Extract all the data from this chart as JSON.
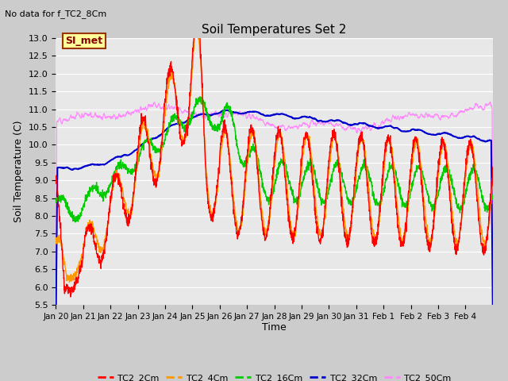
{
  "title": "Soil Temperatures Set 2",
  "subtitle": "No data for f_TC2_8Cm",
  "xlabel": "Time",
  "ylabel": "Soil Temperature (C)",
  "ylim": [
    5.5,
    13.0
  ],
  "yticks": [
    5.5,
    6.0,
    6.5,
    7.0,
    7.5,
    8.0,
    8.5,
    9.0,
    9.5,
    10.0,
    10.5,
    11.0,
    11.5,
    12.0,
    12.5,
    13.0
  ],
  "xtick_labels": [
    "Jan 20",
    "Jan 21",
    "Jan 22",
    "Jan 23",
    "Jan 24",
    "Jan 25",
    "Jan 26",
    "Jan 27",
    "Jan 28",
    "Jan 29",
    "Jan 30",
    "Jan 31",
    "Feb 1",
    "Feb 2",
    "Feb 3",
    "Feb 4"
  ],
  "line_colors": {
    "TC2_2Cm": "#ff0000",
    "TC2_4Cm": "#ff9900",
    "TC2_16Cm": "#00cc00",
    "TC2_32Cm": "#0000cc",
    "TC2_50Cm": "#ff88ff"
  },
  "legend_label": "SI_met",
  "legend_bg": "#ffff99",
  "legend_border": "#993300",
  "fig_bg": "#dddddd",
  "plot_bg": "#e8e8e8",
  "grid_color": "#ffffff",
  "n_points": 2000
}
